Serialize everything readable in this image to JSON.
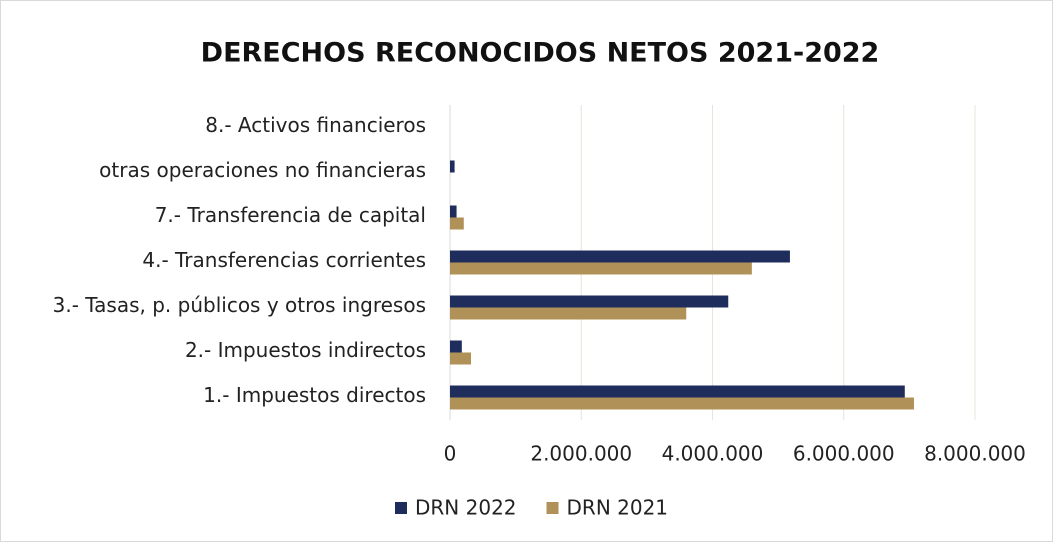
{
  "chart_data": {
    "type": "hbar",
    "title": "DERECHOS RECONOCIDOS NETOS 2021-2022",
    "categories": [
      "8.- Activos financieros",
      "otras operaciones no financieras",
      "7.- Transferencia de capital",
      "4.- Transferencias corrientes",
      "3.- Tasas, p. públicos y otros ingresos",
      "2.- Impuestos indirectos",
      "1.- Impuestos directos"
    ],
    "series": [
      {
        "name": "DRN 2022",
        "color": "#1f2d5c",
        "values": [
          0,
          70000,
          100000,
          5180000,
          4240000,
          180000,
          6930000
        ]
      },
      {
        "name": "DRN 2021",
        "color": "#b09258",
        "values": [
          0,
          0,
          210000,
          4600000,
          3600000,
          320000,
          7070000
        ]
      }
    ],
    "xlim": [
      0,
      8000000
    ],
    "xticks": [
      0,
      {
        "value": 2000000,
        "label": "2.000.000"
      },
      {
        "value": 4000000,
        "label": "4.000.000"
      },
      {
        "value": 6000000,
        "label": "6.000.000"
      },
      {
        "value": 8000000,
        "label": "8.000.000"
      }
    ],
    "grid": true,
    "legend": "bottom"
  }
}
